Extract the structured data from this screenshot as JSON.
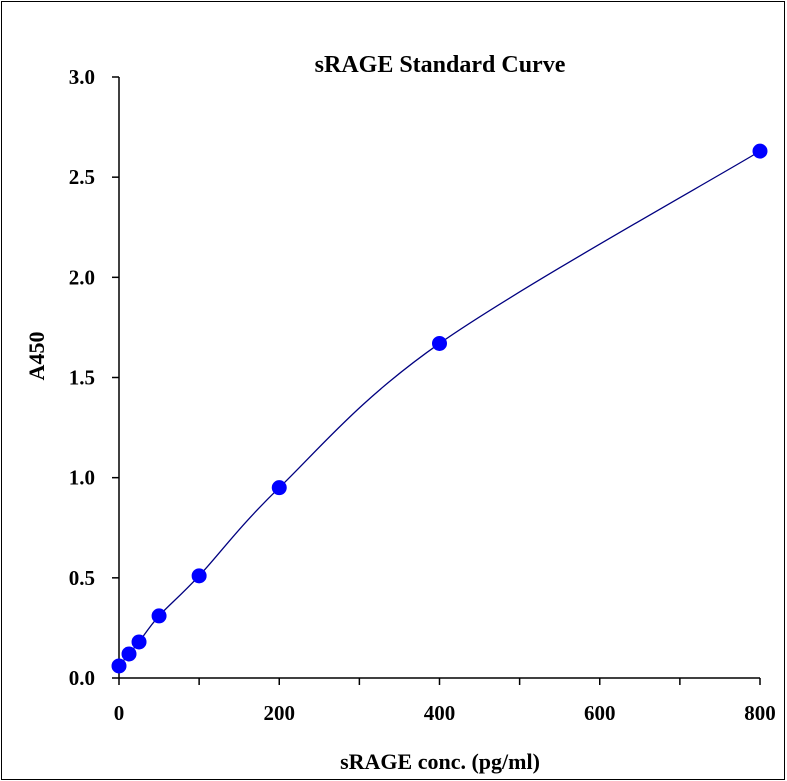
{
  "chart_data": {
    "type": "scatter",
    "title": "sRAGE Standard Curve",
    "xlabel": "sRAGE conc. (pg/ml)",
    "ylabel": "A450",
    "xlim": [
      0,
      800
    ],
    "ylim": [
      0,
      3.0
    ],
    "x_ticks": [
      "0",
      "200",
      "400",
      "600",
      "800"
    ],
    "y_ticks": [
      "0.0",
      "0.5",
      "1.0",
      "1.5",
      "2.0",
      "2.5",
      "3.0"
    ],
    "grid": false,
    "legend": "none",
    "series": [
      {
        "marker": "circle",
        "marker_color": "#0000ff",
        "line_color": "#000080",
        "smooth_line": true,
        "points": [
          {
            "x": 0,
            "y": 0.06
          },
          {
            "x": 12.5,
            "y": 0.12
          },
          {
            "x": 25,
            "y": 0.18
          },
          {
            "x": 50,
            "y": 0.31
          },
          {
            "x": 100,
            "y": 0.51
          },
          {
            "x": 200,
            "y": 0.95
          },
          {
            "x": 400,
            "y": 1.67
          },
          {
            "x": 800,
            "y": 2.63
          }
        ]
      }
    ]
  }
}
